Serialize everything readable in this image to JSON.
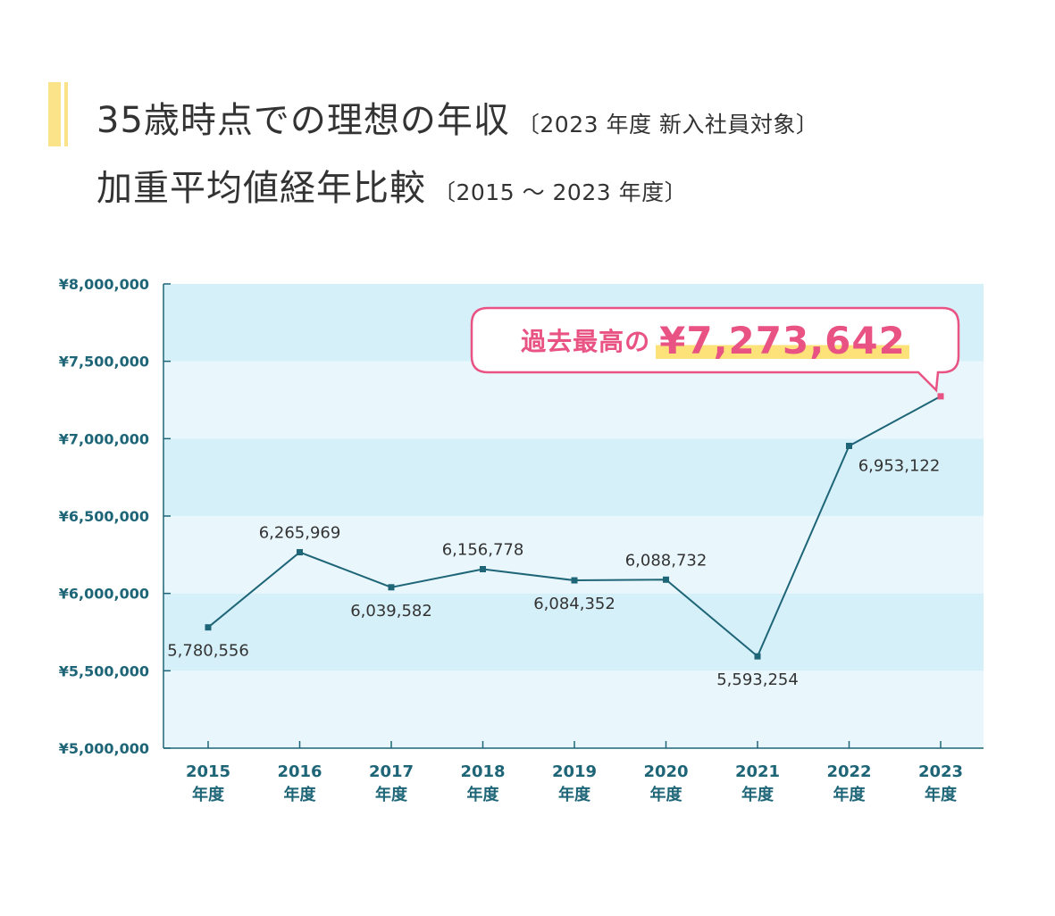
{
  "title": {
    "line1_main": "35歳時点での理想の年収",
    "line1_sub": "〔2023 年度 新入社員対象〕",
    "line2_main": "加重平均値経年比較",
    "line2_sub": "〔2015 ～ 2023 年度〕"
  },
  "callout": {
    "prefix": "過去最高の",
    "value": "¥7,273,642"
  },
  "colors": {
    "line": "#1e6577",
    "highlight_point": "#e95384",
    "band_dark": "#d6f0fa",
    "band_light": "#e9f7fd",
    "axis_text": "#1e6577",
    "title_bar": "#fbe38a",
    "callout": "#e95384"
  },
  "chart_data": {
    "type": "line",
    "x": [
      "2015",
      "2016",
      "2017",
      "2018",
      "2019",
      "2020",
      "2021",
      "2022",
      "2023"
    ],
    "x_sublabel": "年度",
    "values": [
      5780556,
      6265969,
      6039582,
      6156778,
      6084352,
      6088732,
      5593254,
      6953122,
      7273642
    ],
    "data_labels": [
      "5,780,556",
      "6,265,969",
      "6,039,582",
      "6,156,778",
      "6,084,352",
      "6,088,732",
      "5,593,254",
      "6,953,122",
      ""
    ],
    "y_ticks": [
      "¥5,000,000",
      "¥5,500,000",
      "¥6,000,000",
      "¥6,500,000",
      "¥7,000,000",
      "¥7,500,000",
      "¥8,000,000"
    ],
    "ylim": [
      5000000,
      8000000
    ],
    "grid": "alternating horizontal bands",
    "legend": "none"
  }
}
